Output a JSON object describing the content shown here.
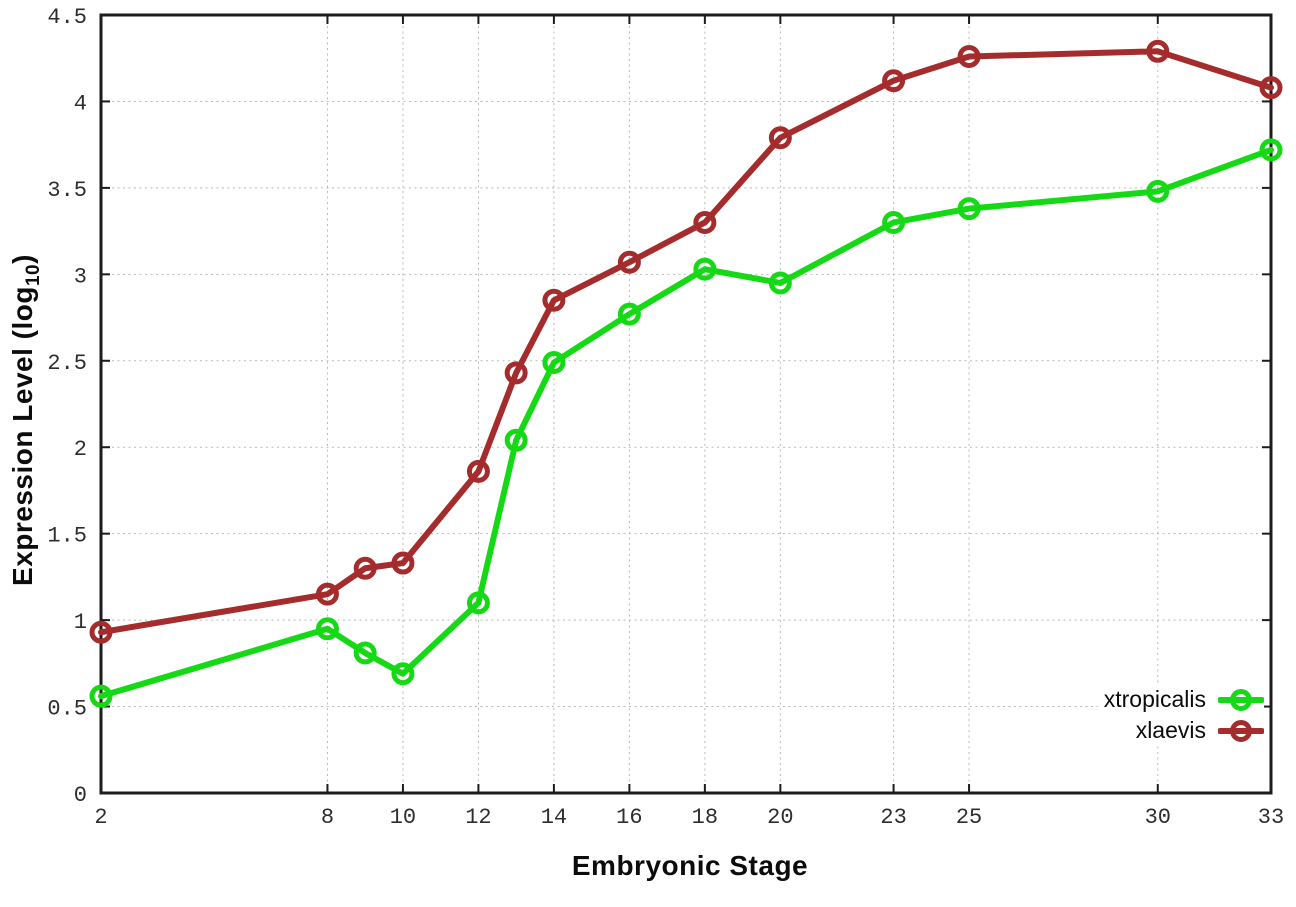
{
  "chart_data": {
    "type": "line",
    "title": "",
    "xlabel": "Embryonic Stage",
    "ylabel_prefix": "Expression Level (log",
    "ylabel_sub": "10",
    "ylabel_suffix": ")",
    "xlim": [
      2,
      33
    ],
    "ylim": [
      0,
      4.5
    ],
    "xticks": [
      2,
      8,
      10,
      12,
      14,
      16,
      18,
      20,
      23,
      25,
      30,
      33
    ],
    "yticks": [
      0,
      0.5,
      1,
      1.5,
      2,
      2.5,
      3,
      3.5,
      4,
      4.5
    ],
    "ytick_labels": [
      "0",
      "0.5",
      "1",
      "1.5",
      "2",
      "2.5",
      "3",
      "3.5",
      "4",
      "4.5"
    ],
    "grid": true,
    "legend_position": "bottom-right-inside",
    "background_color": "#ffffff",
    "x": [
      2,
      8,
      9,
      10,
      12,
      13,
      14,
      16,
      18,
      20,
      23,
      25,
      30,
      33
    ],
    "series": [
      {
        "name": "xtropicalis",
        "color": "#16d916",
        "values": [
          0.56,
          0.95,
          0.81,
          0.69,
          1.1,
          2.04,
          2.49,
          2.77,
          3.03,
          2.95,
          3.3,
          3.38,
          3.48,
          3.72
        ]
      },
      {
        "name": "xlaevis",
        "color": "#a52c2c",
        "values": [
          0.93,
          1.15,
          1.3,
          1.33,
          1.86,
          2.43,
          2.85,
          3.07,
          3.3,
          3.79,
          4.12,
          4.26,
          4.29,
          4.08
        ]
      }
    ]
  }
}
